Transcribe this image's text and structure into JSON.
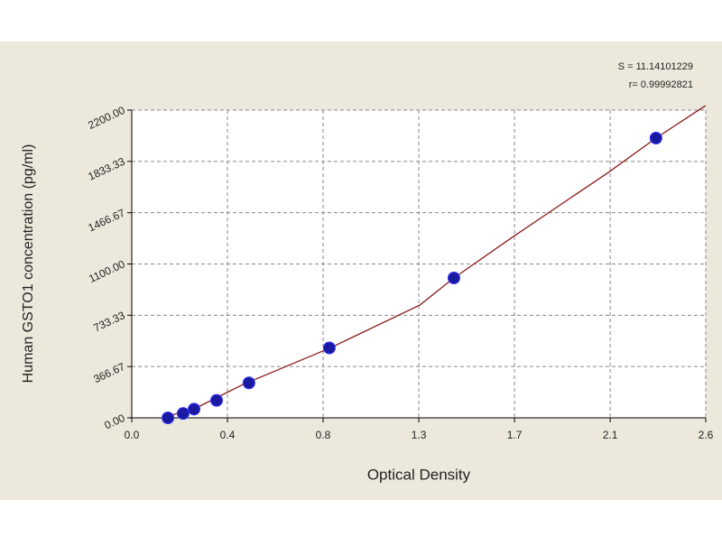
{
  "chart_data": {
    "type": "scatter",
    "x_label": "Optical Density",
    "y_label": "Human GSTO1 concentration (pg/ml)",
    "annotations": [
      "S = 11.14101229",
      "r= 0.99992821"
    ],
    "series": [
      {
        "color": "#1a1aa0",
        "x": [
          0.162,
          0.23,
          0.279,
          0.38,
          0.525,
          0.885,
          1.443,
          2.348
        ],
        "values": [
          0,
          31.25,
          62.5,
          125,
          250,
          500,
          1000,
          2000
        ]
      },
      {
        "color": "#8b1a1a",
        "style": "line",
        "x": [
          0.14,
          0.3,
          0.5,
          0.885,
          1.29,
          1.443,
          1.71,
          2.14,
          2.348,
          2.57
        ],
        "values": [
          0,
          80,
          240,
          497,
          806,
          1000,
          1297,
          1760,
          2000,
          2232
        ]
      }
    ],
    "xlim": [
      0,
      2.571
    ],
    "ylim": [
      0,
      2200
    ],
    "xticks": [
      {
        "value": 0,
        "label": "0.0"
      },
      {
        "value": 0.4286,
        "label": "0.4"
      },
      {
        "value": 0.8571,
        "label": "0.8"
      },
      {
        "value": 1.2857,
        "label": "1.3"
      },
      {
        "value": 1.7143,
        "label": "1.7"
      },
      {
        "value": 2.1429,
        "label": "2.1"
      },
      {
        "value": 2.571,
        "label": "2.6"
      }
    ],
    "yticks": [
      {
        "value": 0,
        "label": "0.00"
      },
      {
        "value": 366.67,
        "label": "366.67"
      },
      {
        "value": 733.33,
        "label": "733.33"
      },
      {
        "value": 1100,
        "label": "1100.00"
      },
      {
        "value": 1466.67,
        "label": "1466.67"
      },
      {
        "value": 1833.33,
        "label": "1833.33"
      },
      {
        "value": 2200,
        "label": "2200.00"
      }
    ],
    "grid": true
  }
}
